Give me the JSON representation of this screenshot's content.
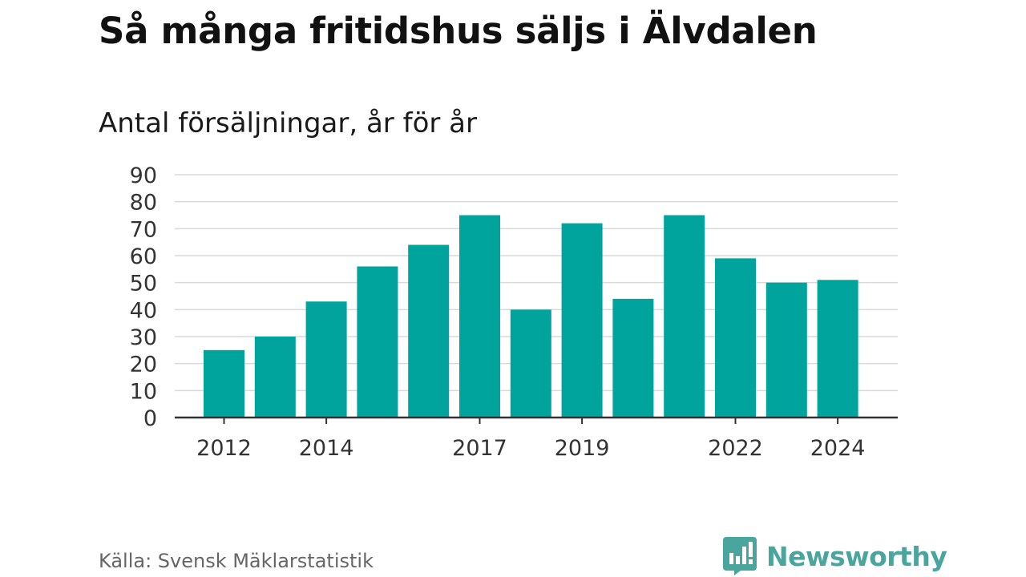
{
  "header": {
    "title": "Så många fritidshus säljs i Älvdalen",
    "subtitle": "Antal försäljningar, år för år"
  },
  "footer": {
    "source": "Källa: Svensk Mäklarstatistik",
    "brand": "Newsworthy"
  },
  "colors": {
    "bar": "#00a49c",
    "grid": "#d9d9d9",
    "axis": "#333333",
    "brand": "#49a59d"
  },
  "chart_data": {
    "type": "bar",
    "title": "Så många fritidshus säljs i Älvdalen",
    "subtitle": "Antal försäljningar, år för år",
    "xlabel": "",
    "ylabel": "",
    "categories": [
      "2012",
      "2013",
      "2014",
      "2015",
      "2016",
      "2017",
      "2018",
      "2019",
      "2020",
      "2021",
      "2022",
      "2023",
      "2024"
    ],
    "values": [
      25,
      30,
      43,
      56,
      64,
      75,
      40,
      72,
      44,
      75,
      59,
      50,
      51
    ],
    "x_tick_labels": [
      "2012",
      "2014",
      "2017",
      "2019",
      "2022",
      "2024"
    ],
    "ylim": [
      0,
      90
    ],
    "y_ticks": [
      0,
      10,
      20,
      30,
      40,
      50,
      60,
      70,
      80,
      90
    ],
    "grid": true,
    "legend": "none"
  }
}
